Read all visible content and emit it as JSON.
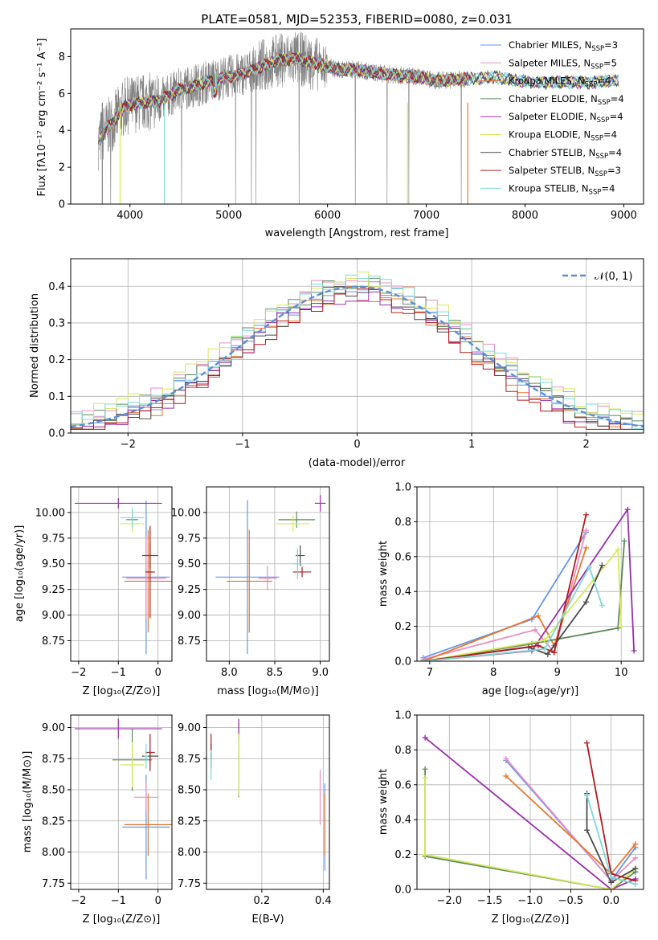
{
  "chart_data": [
    {
      "type": "line",
      "title": "PLATE=0581, MJD=52353, FIBERID=0080, z=0.031",
      "xlabel": "wavelength [Angstrom, rest frame]",
      "ylabel": "Flux [fλ10⁻¹⁷ erg cm⁻² s⁻¹ A⁻¹]",
      "xlim": [
        3400,
        9200
      ],
      "ylim": [
        0,
        9.5
      ],
      "xticks": [
        "4000",
        "5000",
        "6000",
        "7000",
        "8000",
        "9000"
      ],
      "yticks": [
        "0",
        "2",
        "4",
        "6",
        "8"
      ],
      "grid": false,
      "legend_position": "top-right",
      "series": [
        {
          "name": "Chabrier MILES, N",
          "sub": "SSP",
          "suffix": "=3",
          "color": "#6495ED"
        },
        {
          "name": "Salpeter MILES, N",
          "sub": "SSP",
          "suffix": "=5",
          "color": "#E98EC0"
        },
        {
          "name": "Kroupa MILES, N",
          "sub": "SSP",
          "suffix": "=4",
          "color": "#E8762C"
        },
        {
          "name": "Chabrier ELODIE, N",
          "sub": "SSP",
          "suffix": "=4",
          "color": "#5E8A5E"
        },
        {
          "name": "Salpeter ELODIE, N",
          "sub": "SSP",
          "suffix": "=4",
          "color": "#9B2FAE"
        },
        {
          "name": "Kroupa ELODIE, N",
          "sub": "SSP",
          "suffix": "=4",
          "color": "#D8E85C"
        },
        {
          "name": "Chabrier STELIB, N",
          "sub": "SSP",
          "suffix": "=4",
          "color": "#4A4A4A"
        },
        {
          "name": "Salpeter STELIB, N",
          "sub": "SSP",
          "suffix": "=3",
          "color": "#B01C1C"
        },
        {
          "name": "Kroupa STELIB, N",
          "sub": "SSP",
          "suffix": "=4",
          "color": "#7FD8D8"
        }
      ],
      "data_color": "#808080",
      "continuum": [
        [
          3680,
          3.4
        ],
        [
          3750,
          4.0
        ],
        [
          3850,
          4.6
        ],
        [
          3950,
          5.3
        ],
        [
          4100,
          5.5
        ],
        [
          4300,
          5.6
        ],
        [
          4500,
          6.2
        ],
        [
          4700,
          6.5
        ],
        [
          4900,
          6.8
        ],
        [
          5100,
          7.0
        ],
        [
          5300,
          7.4
        ],
        [
          5500,
          7.8
        ],
        [
          5700,
          7.9
        ],
        [
          5900,
          7.6
        ],
        [
          6100,
          7.3
        ],
        [
          6300,
          7.3
        ],
        [
          6500,
          7.1
        ],
        [
          6700,
          7.0
        ],
        [
          6900,
          6.9
        ],
        [
          7100,
          6.7
        ],
        [
          7300,
          6.75
        ],
        [
          7500,
          6.8
        ],
        [
          7700,
          6.9
        ],
        [
          7900,
          6.7
        ],
        [
          8100,
          6.6
        ],
        [
          8300,
          6.6
        ],
        [
          8500,
          6.6
        ],
        [
          8700,
          6.6
        ],
        [
          8900,
          6.7
        ]
      ],
      "data_range": [
        3680,
        7420
      ]
    },
    {
      "type": "histogram",
      "xlabel": "(data-model)/error",
      "ylabel": "Normed distribution",
      "xlim": [
        -2.5,
        2.5
      ],
      "ylim": [
        0,
        0.475
      ],
      "xticks": [
        "−2",
        "−1",
        "0",
        "1",
        "2"
      ],
      "yticks": [
        "0.0",
        "0.1",
        "0.2",
        "0.3",
        "0.4"
      ],
      "grid": true,
      "legend": "𝒩(0, 1)",
      "legend_position": "top-right",
      "reference_color": "#5B8FD6",
      "bin_width": 0.1,
      "hist_series": [
        {
          "color": "#6495ED",
          "offset": 0.0
        },
        {
          "color": "#E98EC0",
          "offset": 0.02
        },
        {
          "color": "#E8762C",
          "offset": -0.015
        },
        {
          "color": "#5E8A5E",
          "offset": 0.01
        },
        {
          "color": "#9B2FAE",
          "offset": -0.02
        },
        {
          "color": "#D8E85C",
          "offset": 0.025
        },
        {
          "color": "#4A4A4A",
          "offset": -0.01
        },
        {
          "color": "#B01C1C",
          "offset": -0.025
        },
        {
          "color": "#7FD8D8",
          "offset": 0.015
        }
      ]
    },
    {
      "type": "scatter",
      "xlabel": "Z [log₁₀(Z/Z⊙)]",
      "ylabel": "age  [log₁₀(age/yr)]",
      "xlim": [
        -2.2,
        0.35
      ],
      "ylim": [
        8.55,
        10.25
      ],
      "xticks": [
        -2,
        -1,
        0
      ],
      "yticks": [
        8.75,
        9.0,
        9.25,
        9.5,
        9.75,
        10.0
      ],
      "grid": true,
      "crosses": [
        {
          "color": "#6495ED",
          "x": -0.3,
          "y": 9.37,
          "x_err": 0.6,
          "y_err": 0.75
        },
        {
          "color": "#E98EC0",
          "x": -0.3,
          "y": 9.36,
          "x_err": 0.5,
          "y_err": 0.4
        },
        {
          "color": "#E8762C",
          "x": -0.25,
          "y": 9.33,
          "x_err": 0.6,
          "y_err": 0.5
        },
        {
          "color": "#5E8A5E",
          "x": -0.65,
          "y": 9.93,
          "x_err": 0.15,
          "y_err": 0.1
        },
        {
          "color": "#9B2FAE",
          "x": -1.0,
          "y": 10.09,
          "x_err": 1.1,
          "y_err": 0.05
        },
        {
          "color": "#D8E85C",
          "x": -0.65,
          "y": 9.89,
          "x_err": 0.3,
          "y_err": 0.08
        },
        {
          "color": "#4A4A4A",
          "x": -0.2,
          "y": 9.58,
          "x_err": 0.2,
          "y_err": 0.12
        },
        {
          "color": "#B01C1C",
          "x": -0.2,
          "y": 9.42,
          "x_err": 0.12,
          "y_err": 0.45
        },
        {
          "color": "#7FD8D8",
          "x": -0.65,
          "y": 9.95,
          "x_err": 0.3,
          "y_err": 0.1
        }
      ]
    },
    {
      "type": "scatter",
      "xlabel": "mass [log₁₀(M/M⊙)]",
      "xlim": [
        7.75,
        9.1
      ],
      "ylim": [
        8.55,
        10.25
      ],
      "xticks": [
        8.0,
        8.5,
        9.0
      ],
      "yticks": [
        8.75,
        9.0,
        9.25,
        9.5,
        9.75,
        10.0
      ],
      "grid": true,
      "crosses": [
        {
          "color": "#6495ED",
          "x": 8.2,
          "y": 9.37,
          "x_err": 0.35,
          "y_err": 0.75
        },
        {
          "color": "#E98EC0",
          "x": 8.42,
          "y": 9.36,
          "x_err": 0.1,
          "y_err": 0.12
        },
        {
          "color": "#E8762C",
          "x": 8.22,
          "y": 9.33,
          "x_err": 0.25,
          "y_err": 0.5
        },
        {
          "color": "#5E8A5E",
          "x": 8.74,
          "y": 9.93,
          "x_err": 0.2,
          "y_err": 0.08
        },
        {
          "color": "#9B2FAE",
          "x": 9.0,
          "y": 10.09,
          "x_err": 0.06,
          "y_err": 0.08
        },
        {
          "color": "#D8E85C",
          "x": 8.7,
          "y": 9.89,
          "x_err": 0.18,
          "y_err": 0.08
        },
        {
          "color": "#4A4A4A",
          "x": 8.78,
          "y": 9.58,
          "x_err": 0.05,
          "y_err": 0.1
        },
        {
          "color": "#B01C1C",
          "x": 8.8,
          "y": 9.42,
          "x_err": 0.1,
          "y_err": 0.05
        },
        {
          "color": "#7FD8D8",
          "x": 8.75,
          "y": 9.5,
          "x_err": 0.05,
          "y_err": 0.15
        }
      ]
    },
    {
      "type": "line",
      "xlabel": "age  [log₁₀(age/yr)]",
      "ylabel": "mass weight",
      "xlim": [
        6.8,
        10.35
      ],
      "ylim": [
        0,
        1
      ],
      "xticks": [
        7,
        8,
        9,
        10
      ],
      "yticks": [
        0.0,
        0.2,
        0.4,
        0.6,
        0.8,
        1.0
      ],
      "grid": true,
      "series": [
        {
          "color": "#6495ED",
          "points": [
            [
              6.9,
              0.02
            ],
            [
              8.6,
              0.24
            ],
            [
              9.45,
              0.74
            ]
          ]
        },
        {
          "color": "#E98EC0",
          "points": [
            [
              6.9,
              0.01
            ],
            [
              8.65,
              0.18
            ],
            [
              8.95,
              0.05
            ],
            [
              9.45,
              0.75
            ]
          ]
        },
        {
          "color": "#E8762C",
          "points": [
            [
              6.9,
              0.0
            ],
            [
              8.7,
              0.26
            ],
            [
              8.95,
              0.09
            ],
            [
              9.45,
              0.65
            ]
          ]
        },
        {
          "color": "#5E8A5E",
          "points": [
            [
              6.9,
              0.0
            ],
            [
              8.6,
              0.1
            ],
            [
              9.95,
              0.19
            ],
            [
              10.05,
              0.69
            ]
          ]
        },
        {
          "color": "#9B2FAE",
          "points": [
            [
              6.9,
              0.0
            ],
            [
              8.6,
              0.06
            ],
            [
              10.1,
              0.87
            ],
            [
              10.2,
              0.06
            ]
          ]
        },
        {
          "color": "#D8E85C",
          "points": [
            [
              6.9,
              0.0
            ],
            [
              8.8,
              0.12
            ],
            [
              9.95,
              0.64
            ],
            [
              10.0,
              0.2
            ]
          ]
        },
        {
          "color": "#4A4A4A",
          "points": [
            [
              6.9,
              0.0
            ],
            [
              8.55,
              0.08
            ],
            [
              8.85,
              0.04
            ],
            [
              9.45,
              0.34
            ],
            [
              9.7,
              0.55
            ]
          ]
        },
        {
          "color": "#B01C1C",
          "points": [
            [
              6.9,
              0.0
            ],
            [
              8.7,
              0.09
            ],
            [
              8.95,
              0.05
            ],
            [
              9.45,
              0.84
            ]
          ]
        },
        {
          "color": "#7FD8D8",
          "points": [
            [
              6.9,
              0.0
            ],
            [
              8.8,
              0.07
            ],
            [
              9.5,
              0.54
            ],
            [
              9.7,
              0.32
            ]
          ]
        }
      ]
    },
    {
      "type": "scatter",
      "xlabel": "Z [log₁₀(Z/Z⊙)]",
      "ylabel": "mass [log₁₀(M/M⊙)]",
      "xlim": [
        -2.2,
        0.35
      ],
      "ylim": [
        7.7,
        9.1
      ],
      "xticks": [
        -2,
        -1,
        0
      ],
      "yticks": [
        7.75,
        8.0,
        8.25,
        8.5,
        8.75,
        9.0
      ],
      "grid": true,
      "crosses": [
        {
          "color": "#6495ED",
          "x": -0.3,
          "y": 8.2,
          "x_err": 0.6,
          "y_err": 0.42
        },
        {
          "color": "#E98EC0",
          "x": -0.3,
          "y": 8.44,
          "x_err": 0.3,
          "y_err": 0.12
        },
        {
          "color": "#E8762C",
          "x": -0.25,
          "y": 8.22,
          "x_err": 0.6,
          "y_err": 0.25
        },
        {
          "color": "#5E8A5E",
          "x": -0.65,
          "y": 8.74,
          "x_err": 0.5,
          "y_err": 0.25
        },
        {
          "color": "#9B2FAE",
          "x": -1.0,
          "y": 8.99,
          "x_err": 1.1,
          "y_err": 0.08
        },
        {
          "color": "#D8E85C",
          "x": -0.65,
          "y": 8.7,
          "x_err": 0.3,
          "y_err": 0.18
        },
        {
          "color": "#4A4A4A",
          "x": -0.2,
          "y": 8.77,
          "x_err": 0.2,
          "y_err": 0.05
        },
        {
          "color": "#B01C1C",
          "x": -0.2,
          "y": 8.8,
          "x_err": 0.12,
          "y_err": 0.15
        },
        {
          "color": "#7FD8D8",
          "x": -0.3,
          "y": 8.77,
          "x_err": 0.05,
          "y_err": 0.1
        }
      ]
    },
    {
      "type": "scatter",
      "xlabel": "E(B-V)",
      "xlim": [
        0.02,
        0.42
      ],
      "ylim": [
        7.7,
        9.1
      ],
      "xticks": [
        0.2,
        0.4
      ],
      "yticks": [
        7.75,
        8.0,
        8.25,
        8.5,
        8.75,
        9.0
      ],
      "grid": true,
      "crosses": [
        {
          "color": "#6495ED",
          "x": 0.405,
          "y": 8.2,
          "x_err": 0.0,
          "y_err": 0.35
        },
        {
          "color": "#E98EC0",
          "x": 0.39,
          "y": 8.44,
          "x_err": 0.0,
          "y_err": 0.22
        },
        {
          "color": "#E8762C",
          "x": 0.405,
          "y": 8.22,
          "x_err": 0.0,
          "y_err": 0.25
        },
        {
          "color": "#5E8A5E",
          "x": 0.125,
          "y": 8.74,
          "x_err": 0.0,
          "y_err": 0.3
        },
        {
          "color": "#9B2FAE",
          "x": 0.125,
          "y": 8.99,
          "x_err": 0.0,
          "y_err": 0.08
        },
        {
          "color": "#D8E85C",
          "x": 0.125,
          "y": 8.7,
          "x_err": 0.0,
          "y_err": 0.25
        },
        {
          "color": "#4A4A4A",
          "x": 0.035,
          "y": 8.77,
          "x_err": 0.0,
          "y_err": 0.1
        },
        {
          "color": "#B01C1C",
          "x": 0.035,
          "y": 8.85,
          "x_err": 0.0,
          "y_err": 0.1
        },
        {
          "color": "#7FD8D8",
          "x": 0.035,
          "y": 8.7,
          "x_err": 0.0,
          "y_err": 0.12
        }
      ]
    },
    {
      "type": "line",
      "xlabel": "Z [log₁₀(Z/Z⊙)]",
      "ylabel": "mass weight",
      "xlim": [
        -2.4,
        0.4
      ],
      "ylim": [
        0,
        1
      ],
      "xticks": [
        -2.0,
        -1.5,
        -1.0,
        -0.5,
        0.0
      ],
      "yticks": [
        0.0,
        0.2,
        0.4,
        0.6,
        0.8,
        1.0
      ],
      "grid": true,
      "series": [
        {
          "color": "#6495ED",
          "points": [
            [
              -1.3,
              0.74
            ],
            [
              0.0,
              0.05
            ],
            [
              0.3,
              0.24
            ]
          ]
        },
        {
          "color": "#E98EC0",
          "points": [
            [
              -1.3,
              0.75
            ],
            [
              0.0,
              0.05
            ],
            [
              0.3,
              0.18
            ]
          ]
        },
        {
          "color": "#E8762C",
          "points": [
            [
              -1.3,
              0.65
            ],
            [
              0.0,
              0.09
            ],
            [
              0.3,
              0.26
            ]
          ]
        },
        {
          "color": "#5E8A5E",
          "points": [
            [
              -2.3,
              0.69
            ],
            [
              -2.3,
              0.19
            ],
            [
              0.0,
              0.0
            ],
            [
              0.3,
              0.1
            ]
          ]
        },
        {
          "color": "#9B2FAE",
          "points": [
            [
              -2.3,
              0.87
            ],
            [
              0.0,
              0.0
            ],
            [
              0.3,
              0.06
            ]
          ]
        },
        {
          "color": "#D8E85C",
          "points": [
            [
              -2.3,
              0.64
            ],
            [
              -2.3,
              0.2
            ],
            [
              0.0,
              0.0
            ],
            [
              0.3,
              0.12
            ]
          ]
        },
        {
          "color": "#4A4A4A",
          "points": [
            [
              -0.3,
              0.55
            ],
            [
              -0.3,
              0.34
            ],
            [
              0.0,
              0.04
            ],
            [
              0.3,
              0.12
            ]
          ]
        },
        {
          "color": "#B01C1C",
          "points": [
            [
              -0.3,
              0.84
            ],
            [
              0.0,
              0.09
            ],
            [
              0.3,
              0.05
            ]
          ]
        },
        {
          "color": "#7FD8D8",
          "points": [
            [
              -0.3,
              0.54
            ],
            [
              0.0,
              0.07
            ],
            [
              0.3,
              0.03
            ]
          ]
        }
      ]
    }
  ]
}
